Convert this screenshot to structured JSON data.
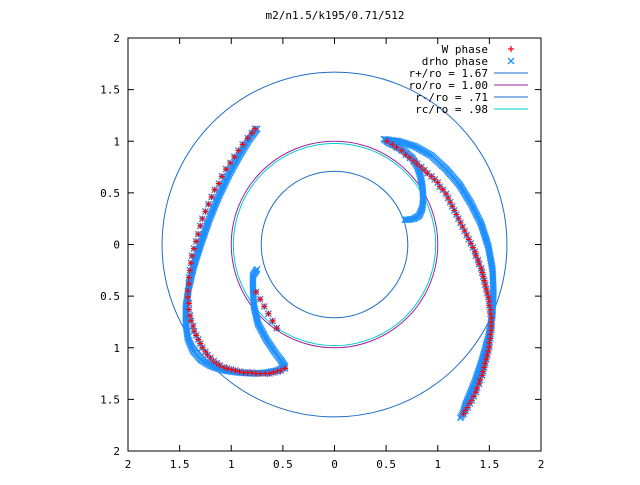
{
  "chart_data": {
    "type": "scatter",
    "title": "m2/n1.5/k195/0.71/512",
    "xlabel": "",
    "ylabel": "",
    "xlim": [
      -2,
      2
    ],
    "ylim": [
      -2,
      2
    ],
    "x_ticks": [
      -2,
      -1.5,
      -1,
      -0.5,
      0,
      0.5,
      1,
      1.5,
      2
    ],
    "y_ticks": [
      -2,
      -1.5,
      -1,
      -0.5,
      0,
      0.5,
      1,
      1.5,
      2
    ],
    "x_tick_labels": [
      "2",
      "1.5",
      "1",
      "0.5",
      "0",
      "0.5",
      "1",
      "1.5",
      "2"
    ],
    "y_tick_labels": [
      "2",
      "1.5",
      "1",
      "0.5",
      "0",
      "0.5",
      "1",
      "1.5",
      "2"
    ],
    "grid": false,
    "legend_position": "top-right",
    "legend": [
      {
        "label": "W phase",
        "marker": "plus",
        "color": "#ff0000"
      },
      {
        "label": "drho phase",
        "marker": "cross",
        "color": "#1e90ff"
      },
      {
        "label": "r+/ro = 1.67",
        "line": true,
        "color": "#1e6ec8"
      },
      {
        "label": "ro/ro = 1.00",
        "line": true,
        "color": "#a020a0"
      },
      {
        "label": "r-/ro = .71",
        "line": true,
        "color": "#1e6ec8"
      },
      {
        "label": "rc/ro = .98",
        "line": true,
        "color": "#00cccc"
      }
    ],
    "circles": [
      {
        "r": 1.67,
        "color": "#1e6ec8"
      },
      {
        "r": 1.0,
        "color": "#a020a0"
      },
      {
        "r": 0.71,
        "color": "#1e6ec8"
      },
      {
        "r": 0.98,
        "color": "#00cccc"
      }
    ],
    "series": [
      {
        "name": "W phase",
        "marker": "plus",
        "color": "#ff0000",
        "x": [
          -0.77,
          -0.8,
          -0.84,
          -0.89,
          -0.93,
          -0.97,
          -1.01,
          -1.05,
          -1.09,
          -1.12,
          -1.16,
          -1.19,
          -1.22,
          -1.25,
          -1.28,
          -1.3,
          -1.32,
          -1.34,
          -1.36,
          -1.38,
          -1.39,
          -1.4,
          -1.41,
          -1.41,
          -1.42,
          -1.42,
          -1.41,
          -1.41,
          -1.4,
          -1.39,
          -1.37,
          -1.36,
          -1.34,
          -1.32,
          -1.3,
          -1.28,
          -1.25,
          -1.23,
          -1.2,
          -1.17,
          -1.14,
          -1.11,
          -1.07,
          -1.04,
          -1.0,
          -0.96,
          -0.92,
          -0.88,
          -0.84,
          -0.8,
          -0.76,
          -0.72,
          -0.67,
          -0.63,
          -0.59,
          -0.55,
          -0.52,
          -0.48,
          -0.76,
          -0.72,
          -0.68,
          -0.64,
          -0.6,
          -0.56,
          0.51,
          0.56,
          0.6,
          0.65,
          0.69,
          0.73,
          0.77,
          0.8,
          0.84,
          0.87,
          0.9,
          0.94,
          0.97,
          1.0,
          1.02,
          1.05,
          1.08,
          1.1,
          1.12,
          1.14,
          1.16,
          1.18,
          1.2,
          1.22,
          1.24,
          1.26,
          1.28,
          1.3,
          1.32,
          1.34,
          1.36,
          1.37,
          1.39,
          1.4,
          1.42,
          1.43,
          1.44,
          1.45,
          1.46,
          1.47,
          1.48,
          1.49,
          1.5,
          1.5,
          1.51,
          1.51,
          1.52,
          1.52,
          1.52,
          1.52,
          1.51,
          1.51,
          1.5,
          1.5,
          1.49,
          1.48,
          1.47,
          1.46,
          1.45,
          1.44,
          1.43,
          1.41,
          1.4,
          1.38,
          1.37,
          1.35,
          1.33,
          1.31,
          1.29,
          1.27,
          1.25
        ],
        "y": [
          1.12,
          1.08,
          1.03,
          0.97,
          0.91,
          0.85,
          0.79,
          0.73,
          0.66,
          0.59,
          0.53,
          0.46,
          0.39,
          0.32,
          0.25,
          0.18,
          0.1,
          0.03,
          -0.04,
          -0.11,
          -0.18,
          -0.25,
          -0.32,
          -0.38,
          -0.45,
          -0.51,
          -0.57,
          -0.63,
          -0.69,
          -0.74,
          -0.79,
          -0.84,
          -0.88,
          -0.92,
          -0.96,
          -1.0,
          -1.04,
          -1.07,
          -1.1,
          -1.13,
          -1.15,
          -1.17,
          -1.19,
          -1.2,
          -1.21,
          -1.22,
          -1.23,
          -1.24,
          -1.24,
          -1.24,
          -1.25,
          -1.25,
          -1.25,
          -1.25,
          -1.24,
          -1.23,
          -1.22,
          -1.2,
          -0.46,
          -0.53,
          -0.6,
          -0.67,
          -0.74,
          -0.81,
          1.0,
          0.97,
          0.94,
          0.91,
          0.87,
          0.84,
          0.81,
          0.78,
          0.75,
          0.72,
          0.69,
          0.66,
          0.63,
          0.6,
          0.56,
          0.53,
          0.49,
          0.45,
          0.41,
          0.37,
          0.33,
          0.29,
          0.25,
          0.21,
          0.17,
          0.13,
          0.09,
          0.05,
          0.01,
          -0.03,
          -0.07,
          -0.11,
          -0.15,
          -0.19,
          -0.23,
          -0.27,
          -0.31,
          -0.35,
          -0.39,
          -0.43,
          -0.47,
          -0.51,
          -0.55,
          -0.59,
          -0.63,
          -0.67,
          -0.71,
          -0.75,
          -0.79,
          -0.83,
          -0.87,
          -0.91,
          -0.95,
          -0.99,
          -1.03,
          -1.07,
          -1.11,
          -1.15,
          -1.19,
          -1.23,
          -1.27,
          -1.31,
          -1.35,
          -1.39,
          -1.43,
          -1.47,
          -1.51,
          -1.54,
          -1.58,
          -1.61,
          -1.64
        ]
      },
      {
        "name": "drho phase",
        "marker": "cross",
        "color": "#1e90ff",
        "curves": [
          {
            "x": [
              -0.75,
              -0.83,
              -0.92,
              -1.02,
              -1.12,
              -1.21,
              -1.29,
              -1.36,
              -1.41,
              -1.44,
              -1.44,
              -1.42,
              -1.37,
              -1.29,
              -1.19,
              -1.07,
              -0.93,
              -0.79,
              -0.66,
              -0.55,
              -0.48
            ],
            "y": [
              1.12,
              1.01,
              0.86,
              0.68,
              0.47,
              0.25,
              0.02,
              -0.2,
              -0.41,
              -0.6,
              -0.77,
              -0.91,
              -1.03,
              -1.12,
              -1.18,
              -1.22,
              -1.24,
              -1.25,
              -1.24,
              -1.22,
              -1.18
            ]
          },
          {
            "x": [
              -0.48,
              -0.52,
              -0.58,
              -0.66,
              -0.74,
              -0.78,
              -0.79,
              -0.79,
              -0.75
            ],
            "y": [
              -1.18,
              -1.12,
              -1.04,
              -0.92,
              -0.77,
              -0.6,
              -0.44,
              -0.3,
              -0.24
            ]
          },
          {
            "x": [
              0.48,
              0.53,
              0.6,
              0.68,
              0.75,
              0.8,
              0.83,
              0.85,
              0.86,
              0.85,
              0.82,
              0.77,
              0.72,
              0.68
            ],
            "y": [
              1.02,
              0.98,
              0.95,
              0.9,
              0.84,
              0.76,
              0.67,
              0.57,
              0.45,
              0.35,
              0.28,
              0.25,
              0.24,
              0.24
            ]
          },
          {
            "x": [
              0.48,
              0.62,
              0.78,
              0.94,
              1.08,
              1.21,
              1.32,
              1.42,
              1.49,
              1.53,
              1.54,
              1.53,
              1.49,
              1.43,
              1.36,
              1.27
            ],
            "y": [
              1.02,
              1.0,
              0.95,
              0.86,
              0.73,
              0.58,
              0.4,
              0.2,
              -0.02,
              -0.24,
              -0.46,
              -0.68,
              -0.9,
              -1.12,
              -1.33,
              -1.55
            ]
          },
          {
            "x": [
              1.27,
              1.25,
              1.22
            ],
            "y": [
              -1.55,
              -1.62,
              -1.68
            ]
          }
        ]
      }
    ]
  }
}
